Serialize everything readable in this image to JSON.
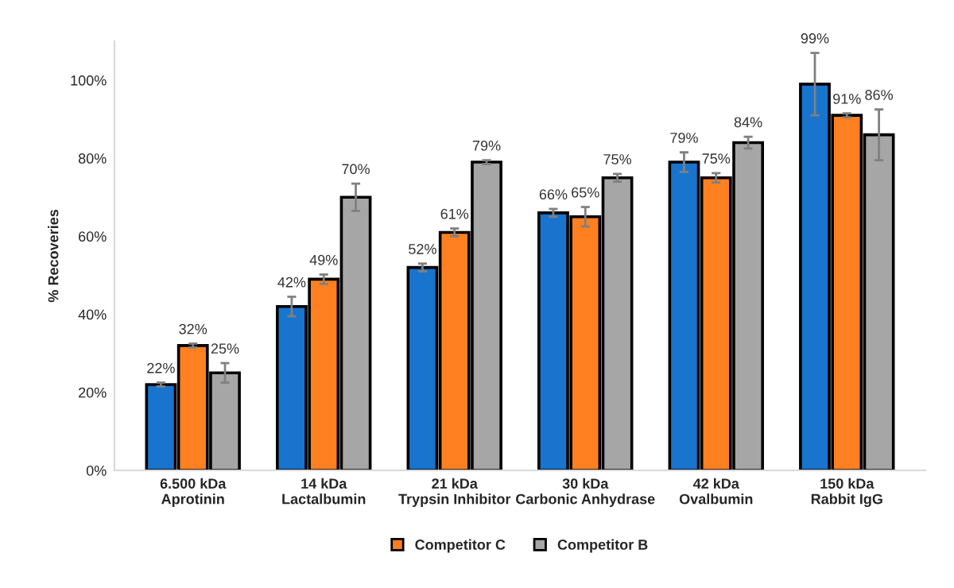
{
  "chart_data": {
    "type": "bar",
    "ylabel": "% Recoveries",
    "categories": [
      "6.500 kDa\nAprotinin",
      "14 kDa\nLactalbumin",
      "21 kDa\nTrypsin Inhibitor",
      "30 kDa\nCarbonic Anhydrase",
      "42 kDa\nOvalbumin",
      "150 kDa\nRabbit IgG"
    ],
    "series": [
      {
        "color": "#1874cd",
        "values": [
          22,
          42,
          52,
          66,
          79,
          99
        ],
        "errors": [
          0.5,
          2.5,
          1,
          1,
          2.5,
          8
        ],
        "value_labels": [
          "22%",
          "42%",
          "52%",
          "66%",
          "79%",
          "99%"
        ]
      },
      {
        "name": "Competitor C",
        "color": "#ff8020",
        "values": [
          32,
          49,
          61,
          65,
          75,
          91
        ],
        "errors": [
          0.5,
          1.2,
          1,
          2.5,
          1.2,
          0.5
        ],
        "value_labels": [
          "32%",
          "49%",
          "61%",
          "65%",
          "75%",
          "91%"
        ]
      },
      {
        "name": "Competitor B",
        "color": "#a6a6a6",
        "values": [
          25,
          70,
          79,
          75,
          84,
          86
        ],
        "errors": [
          2.5,
          3.5,
          0.5,
          1,
          1.5,
          6.5
        ],
        "value_labels": [
          "25%",
          "70%",
          "79%",
          "75%",
          "84%",
          "86%"
        ]
      }
    ],
    "ylim": [
      0,
      110
    ],
    "yticks": [
      {
        "value": 0,
        "label": "0%"
      },
      {
        "value": 20,
        "label": "20%"
      },
      {
        "value": 40,
        "label": "40%"
      },
      {
        "value": 60,
        "label": "60%"
      },
      {
        "value": 80,
        "label": "80%"
      },
      {
        "value": 100,
        "label": "100%"
      }
    ],
    "grid": false,
    "legend": "bottom"
  }
}
